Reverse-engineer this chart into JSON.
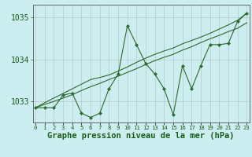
{
  "x": [
    0,
    1,
    2,
    3,
    4,
    5,
    6,
    7,
    8,
    9,
    10,
    11,
    12,
    13,
    14,
    15,
    16,
    17,
    18,
    19,
    20,
    21,
    22,
    23
  ],
  "y_main": [
    1032.85,
    1032.85,
    1032.85,
    1033.15,
    1033.2,
    1032.72,
    1032.62,
    1032.72,
    1033.3,
    1033.65,
    1034.8,
    1034.35,
    1033.9,
    1033.65,
    1033.3,
    1032.68,
    1033.85,
    1033.3,
    1033.85,
    1034.35,
    1034.35,
    1034.38,
    1034.9,
    1035.1
  ],
  "y_trend1": [
    1032.85,
    1032.97,
    1033.08,
    1033.19,
    1033.3,
    1033.41,
    1033.52,
    1033.57,
    1033.63,
    1033.72,
    1033.82,
    1033.93,
    1034.03,
    1034.12,
    1034.2,
    1034.27,
    1034.37,
    1034.45,
    1034.53,
    1034.62,
    1034.72,
    1034.82,
    1034.93,
    1035.1
  ],
  "y_trend2": [
    1032.85,
    1032.93,
    1033.0,
    1033.08,
    1033.16,
    1033.26,
    1033.35,
    1033.43,
    1033.52,
    1033.6,
    1033.69,
    1033.78,
    1033.88,
    1033.97,
    1034.05,
    1034.12,
    1034.22,
    1034.3,
    1034.4,
    1034.49,
    1034.57,
    1034.66,
    1034.74,
    1034.87
  ],
  "ylim": [
    1032.5,
    1035.3
  ],
  "yticks": [
    1033,
    1034,
    1035
  ],
  "xticks": [
    0,
    1,
    2,
    3,
    4,
    5,
    6,
    7,
    8,
    9,
    10,
    11,
    12,
    13,
    14,
    15,
    16,
    17,
    18,
    19,
    20,
    21,
    22,
    23
  ],
  "line_color": "#2d6a2d",
  "bg_color": "#cceef0",
  "grid_color": "#b0b0b0",
  "text_color": "#1a5c1a",
  "xlabel": "Graphe pression niveau de la mer (hPa)",
  "xlabel_fontsize": 7.5,
  "ytick_fontsize": 7,
  "xtick_fontsize": 5.2,
  "markersize": 2.2
}
